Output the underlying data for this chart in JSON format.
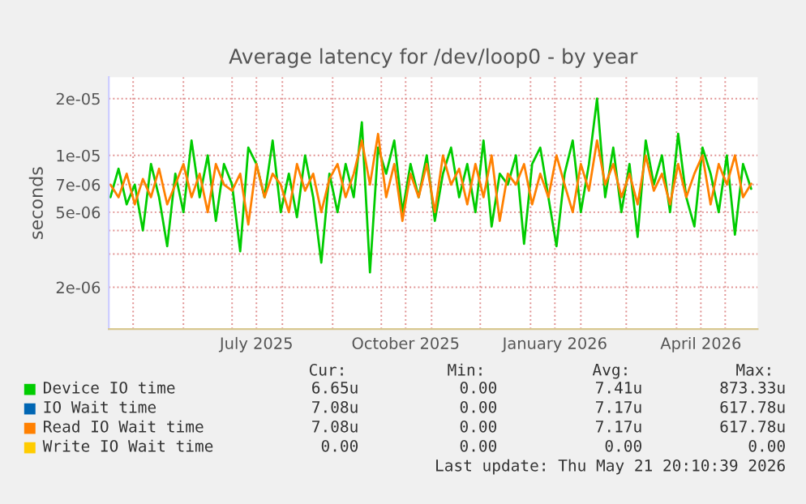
{
  "chart_data": {
    "type": "line",
    "title": "Average latency for /dev/loop0 - by year",
    "ylabel": "seconds",
    "log": "y",
    "grid": true,
    "legend": "bottom",
    "line_style": "solid",
    "marker": "none",
    "xlim": [
      "2025-04-16",
      "2026-05-21"
    ],
    "xticks": [
      {
        "value": "2025-05-01",
        "label": null
      },
      {
        "value": "2025-06-01",
        "label": null
      },
      {
        "value": "2025-07-01",
        "label": null
      },
      {
        "value": "2025-07-16",
        "label": "July 2025"
      },
      {
        "value": "2025-08-01",
        "label": null
      },
      {
        "value": "2025-09-01",
        "label": null
      },
      {
        "value": "2025-10-01",
        "label": null
      },
      {
        "value": "2025-10-16",
        "label": "October 2025"
      },
      {
        "value": "2025-11-01",
        "label": null
      },
      {
        "value": "2025-12-01",
        "label": null
      },
      {
        "value": "2026-01-01",
        "label": null
      },
      {
        "value": "2026-01-16",
        "label": "January 2026"
      },
      {
        "value": "2026-02-01",
        "label": null
      },
      {
        "value": "2026-03-01",
        "label": null
      },
      {
        "value": "2026-04-01",
        "label": null
      },
      {
        "value": "2026-04-16",
        "label": "April 2026"
      },
      {
        "value": "2026-05-01",
        "label": null
      }
    ],
    "ylim": [
      1.2e-06,
      2.6e-05
    ],
    "yticks": [
      {
        "value": 2e-06,
        "label": "2e-06"
      },
      {
        "value": 3e-06,
        "label": null
      },
      {
        "value": 4e-06,
        "label": null
      },
      {
        "value": 5e-06,
        "label": "5e-06"
      },
      {
        "value": 7e-06,
        "label": "7e-06"
      },
      {
        "value": 1e-05,
        "label": "1e-05"
      },
      {
        "value": 2e-05,
        "label": "2e-05"
      }
    ],
    "x": [
      "2025-04-17",
      "2025-04-22",
      "2025-04-27",
      "2025-05-02",
      "2025-05-07",
      "2025-05-12",
      "2025-05-17",
      "2025-05-22",
      "2025-05-27",
      "2025-06-01",
      "2025-06-06",
      "2025-06-11",
      "2025-06-16",
      "2025-06-21",
      "2025-06-26",
      "2025-07-01",
      "2025-07-06",
      "2025-07-11",
      "2025-07-16",
      "2025-07-21",
      "2025-07-26",
      "2025-07-31",
      "2025-08-05",
      "2025-08-10",
      "2025-08-15",
      "2025-08-20",
      "2025-08-25",
      "2025-08-30",
      "2025-09-04",
      "2025-09-09",
      "2025-09-14",
      "2025-09-19",
      "2025-09-24",
      "2025-09-29",
      "2025-10-04",
      "2025-10-09",
      "2025-10-14",
      "2025-10-19",
      "2025-10-24",
      "2025-10-29",
      "2025-11-03",
      "2025-11-08",
      "2025-11-13",
      "2025-11-18",
      "2025-11-23",
      "2025-11-28",
      "2025-12-03",
      "2025-12-08",
      "2025-12-13",
      "2025-12-18",
      "2025-12-23",
      "2025-12-28",
      "2026-01-02",
      "2026-01-07",
      "2026-01-12",
      "2026-01-17",
      "2026-01-22",
      "2026-01-27",
      "2026-02-01",
      "2026-02-06",
      "2026-02-11",
      "2026-02-16",
      "2026-02-21",
      "2026-02-26",
      "2026-03-03",
      "2026-03-08",
      "2026-03-13",
      "2026-03-18",
      "2026-03-23",
      "2026-03-28",
      "2026-04-02",
      "2026-04-07",
      "2026-04-12",
      "2026-04-17",
      "2026-04-22",
      "2026-04-27",
      "2026-05-02",
      "2026-05-07",
      "2026-05-12",
      "2026-05-17"
    ],
    "series": [
      {
        "name": "Device IO time",
        "color": "#00cc00",
        "values": [
          6e-06,
          8.5e-06,
          5.5e-06,
          7e-06,
          4e-06,
          9e-06,
          6e-06,
          3.3e-06,
          8e-06,
          5e-06,
          1.2e-05,
          6e-06,
          1e-05,
          4.5e-06,
          9e-06,
          7e-06,
          3.1e-06,
          1.1e-05,
          9e-06,
          6e-06,
          1.2e-05,
          5e-06,
          8e-06,
          4.7e-06,
          1e-05,
          6e-06,
          2.7e-06,
          8e-06,
          5e-06,
          9e-06,
          6e-06,
          1.5e-05,
          2.4e-06,
          1.1e-05,
          8e-06,
          1.2e-05,
          5e-06,
          9e-06,
          6e-06,
          1e-05,
          4.5e-06,
          8e-06,
          1.1e-05,
          6e-06,
          9e-06,
          5e-06,
          1.2e-05,
          4.2e-06,
          8e-06,
          7e-06,
          1e-05,
          3.4e-06,
          9e-06,
          1.1e-05,
          6e-06,
          3.3e-06,
          8e-06,
          1.2e-05,
          5e-06,
          9e-06,
          2e-05,
          6e-06,
          1.1e-05,
          5e-06,
          9e-06,
          3.7e-06,
          1.2e-05,
          7e-06,
          1e-05,
          5e-06,
          1.3e-05,
          6e-06,
          4.2e-06,
          1.1e-05,
          8e-06,
          5e-06,
          1e-05,
          3.8e-06,
          9e-06,
          6.65e-06
        ]
      },
      {
        "name": "IO Wait time",
        "color": "#0066b3",
        "values": [
          null,
          null,
          null,
          null,
          null,
          null,
          null,
          null,
          null,
          null,
          null,
          null,
          null,
          null,
          null,
          null,
          null,
          null,
          null,
          null,
          null,
          null,
          null,
          null,
          null,
          null,
          null,
          null,
          null,
          null,
          null,
          null,
          null,
          null,
          null,
          null,
          null,
          null,
          null,
          null,
          null,
          null,
          null,
          null,
          null,
          null,
          null,
          null,
          null,
          null,
          null,
          null,
          null,
          null,
          null,
          null,
          null,
          null,
          null,
          null,
          null,
          null,
          null,
          null,
          null,
          null,
          null,
          null,
          null,
          null,
          null,
          null,
          null,
          null,
          null,
          null,
          null,
          null,
          null,
          null
        ]
      },
      {
        "name": "Read IO Wait time",
        "color": "#ff8000",
        "values": [
          7e-06,
          6e-06,
          8e-06,
          5.5e-06,
          7.5e-06,
          6e-06,
          8.5e-06,
          5.5e-06,
          7e-06,
          9e-06,
          6e-06,
          8e-06,
          5e-06,
          9e-06,
          7e-06,
          6.5e-06,
          8e-06,
          4.3e-06,
          9e-06,
          6e-06,
          8e-06,
          7e-06,
          5e-06,
          9e-06,
          6.5e-06,
          8e-06,
          5e-06,
          7.5e-06,
          9e-06,
          6e-06,
          8e-06,
          1.2e-05,
          7e-06,
          1.3e-05,
          6e-06,
          9e-06,
          4.5e-06,
          8e-06,
          6e-06,
          9e-06,
          5e-06,
          1e-05,
          7e-06,
          8.5e-06,
          5.5e-06,
          9e-06,
          6e-06,
          1e-05,
          4.5e-06,
          8e-06,
          7e-06,
          9e-06,
          5.5e-06,
          8e-06,
          6e-06,
          1e-05,
          7e-06,
          5e-06,
          9e-06,
          6.5e-06,
          1.2e-05,
          7e-06,
          9e-06,
          6e-06,
          8e-06,
          5.5e-06,
          1e-05,
          6.5e-06,
          8e-06,
          5.5e-06,
          9e-06,
          6e-06,
          8e-06,
          1e-05,
          5.5e-06,
          9e-06,
          7e-06,
          1e-05,
          6e-06,
          7.08e-06
        ]
      },
      {
        "name": "Write IO Wait time",
        "color": "#ffcc00",
        "values": [
          null,
          null,
          null,
          null,
          null,
          null,
          null,
          null,
          null,
          null,
          null,
          null,
          null,
          null,
          null,
          null,
          null,
          null,
          null,
          null,
          null,
          null,
          null,
          null,
          null,
          null,
          null,
          null,
          null,
          null,
          null,
          null,
          null,
          null,
          null,
          null,
          null,
          null,
          null,
          null,
          null,
          null,
          null,
          null,
          null,
          null,
          null,
          null,
          null,
          null,
          null,
          null,
          null,
          null,
          null,
          null,
          null,
          null,
          null,
          null,
          null,
          null,
          null,
          null,
          null,
          null,
          null,
          null,
          null,
          null,
          null,
          null,
          null,
          null,
          null,
          null,
          null,
          null,
          null,
          null
        ]
      }
    ],
    "annotations": [
      "Cur:",
      "Min:",
      "Avg:",
      "Max:",
      "6.65u",
      "0.00",
      "7.41u",
      "873.33u",
      "7.08u",
      "0.00",
      "7.17u",
      "617.78u",
      "7.08u",
      "0.00",
      "7.17u",
      "617.78u",
      "0.00",
      "0.00",
      "0.00",
      "0.00",
      "Last update: Thu May 21 20:10:39 2026"
    ]
  }
}
